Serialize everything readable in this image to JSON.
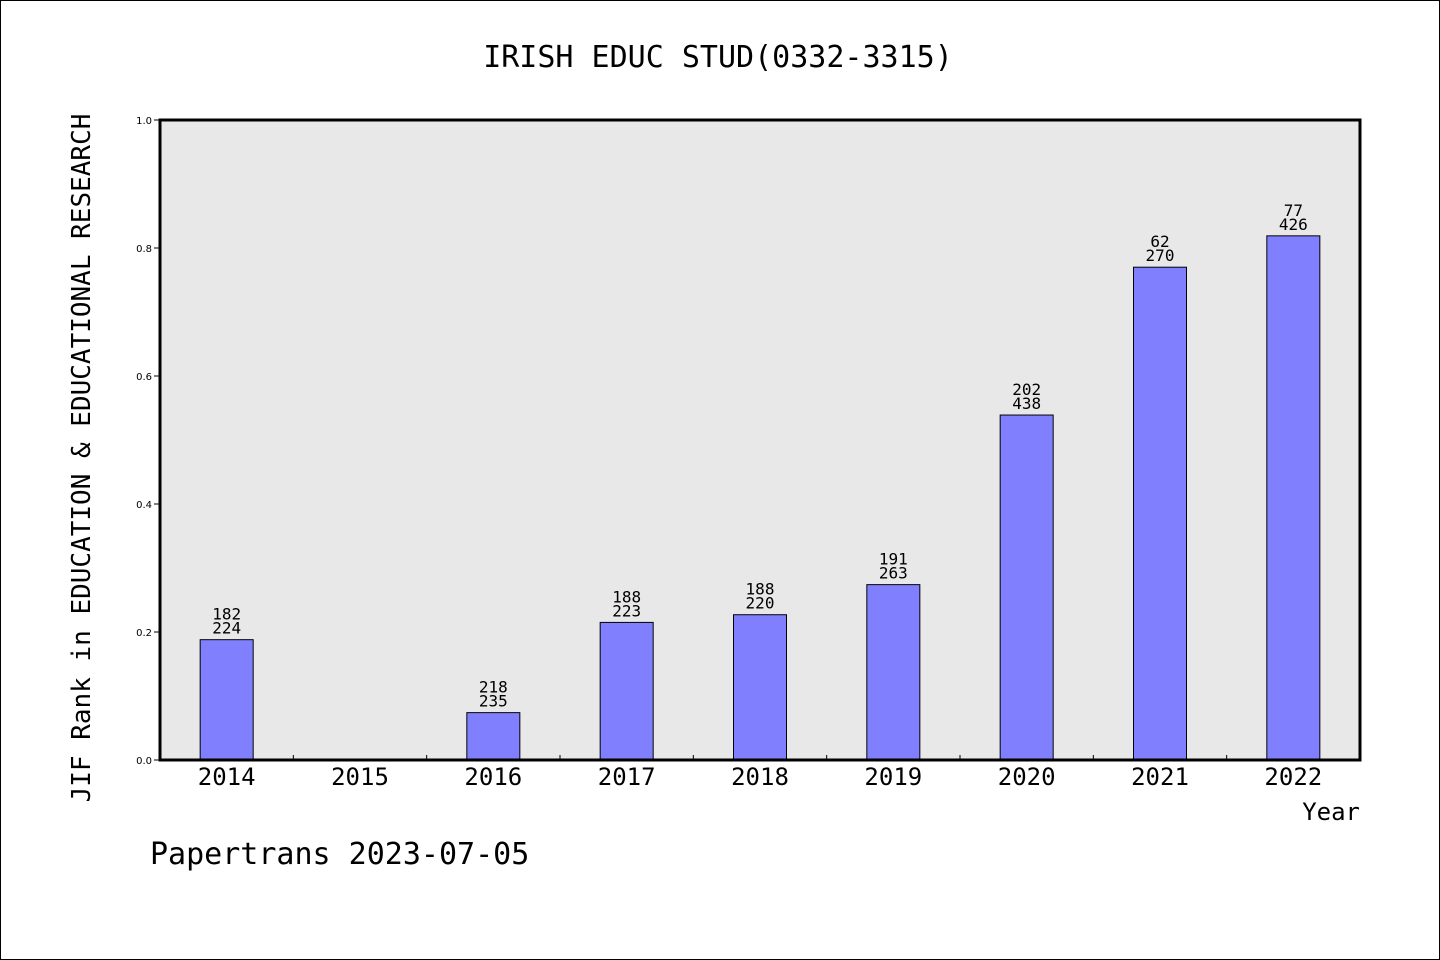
{
  "chart_data": {
    "type": "bar",
    "title": "IRISH EDUC STUD(0332-3315)",
    "xlabel": "Year",
    "ylabel": "JIF Rank in EDUCATION & EDUCATIONAL RESEARCH",
    "categories": [
      "2014",
      "2015",
      "2016",
      "2017",
      "2018",
      "2019",
      "2020",
      "2021",
      "2022"
    ],
    "values": [
      0.188,
      null,
      0.074,
      0.215,
      0.227,
      0.274,
      0.539,
      0.77,
      0.819
    ],
    "labels_top": [
      "182",
      "",
      "218",
      "188",
      "188",
      "191",
      "202",
      "62",
      "77"
    ],
    "labels_bottom": [
      "224",
      "",
      "235",
      "223",
      "220",
      "263",
      "438",
      "270",
      "426"
    ],
    "ylim": [
      0,
      1.0
    ],
    "yticks": [
      "0.0",
      "0.2",
      "0.4",
      "0.6",
      "0.8",
      "1.0"
    ],
    "grid": false,
    "bar_color": "#8080ff",
    "plot_background": "#e8e8e8"
  },
  "footer": "Papertrans 2023-07-05"
}
